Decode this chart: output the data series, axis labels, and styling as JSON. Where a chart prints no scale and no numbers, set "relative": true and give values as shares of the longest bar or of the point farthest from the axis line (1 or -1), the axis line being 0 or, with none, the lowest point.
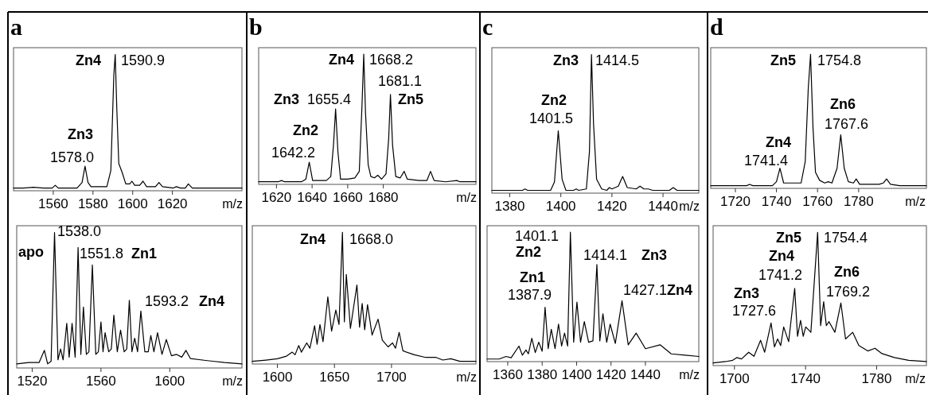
{
  "chart_data": [
    {
      "type": "line",
      "title": "a",
      "xlabel": "m/z",
      "relative": true,
      "tick_labels": "x",
      "xlim": [
        1540,
        1655
      ],
      "xticks": [
        1560,
        1580,
        1600,
        1620
      ],
      "series": [
        {
          "color": "#000000",
          "x": [
            1540,
            1545,
            1550,
            1555,
            1559.5,
            1561,
            1562.5,
            1572,
            1574.5,
            1576,
            1577.5,
            1579,
            1587,
            1589,
            1590.5,
            1591.2,
            1592,
            1593,
            1594.8,
            1596.5,
            1598.5,
            1599.6,
            1601,
            1603.5,
            1605.2,
            1607,
            1611.5,
            1613.2,
            1615,
            1620.5,
            1622,
            1624,
            1626.5,
            1628,
            1630,
            1640,
            1655
          ],
          "values": [
            0.02,
            0.02,
            0.025,
            0.02,
            0.02,
            0.04,
            0.02,
            0.02,
            0.06,
            0.18,
            0.06,
            0.03,
            0.03,
            0.15,
            0.85,
            1.0,
            0.6,
            0.2,
            0.13,
            0.05,
            0.05,
            0.07,
            0.04,
            0.04,
            0.07,
            0.03,
            0.03,
            0.06,
            0.03,
            0.02,
            0.03,
            0.02,
            0.02,
            0.05,
            0.02,
            0.02,
            0.02
          ]
        }
      ],
      "annotations": [
        "Zn4",
        "1590.9",
        "Zn3",
        "1578.0"
      ]
    },
    {
      "type": "line",
      "xlabel": "m/z",
      "relative": true,
      "tick_labels": "x",
      "xlim": [
        1511,
        1642
      ],
      "xticks": [
        1520,
        1560,
        1600
      ],
      "series": [
        {
          "color": "#000000",
          "x": [
            1511,
            1518,
            1524,
            1527.1,
            1529,
            1531,
            1533,
            1535,
            1536.5,
            1538,
            1540.1,
            1541.5,
            1543.2,
            1545,
            1546.7,
            1548.3,
            1549.8,
            1551.5,
            1553,
            1555,
            1557,
            1558.5,
            1560,
            1561.2,
            1562.4,
            1564.5,
            1566,
            1567.5,
            1569.5,
            1571.4,
            1573.5,
            1575,
            1576.5,
            1578,
            1579.6,
            1581.3,
            1583.2,
            1585.5,
            1587.5,
            1589,
            1590.8,
            1592.9,
            1595.5,
            1598,
            1601,
            1604,
            1607,
            1609.4,
            1612,
            1618,
            1625,
            1632,
            1642
          ],
          "values": [
            0.03,
            0.04,
            0.04,
            0.13,
            0.03,
            0.05,
            1.0,
            0.06,
            0.14,
            0.06,
            0.33,
            0.08,
            0.33,
            0.08,
            0.89,
            0.1,
            0.45,
            0.1,
            0.12,
            0.76,
            0.1,
            0.12,
            0.34,
            0.12,
            0.26,
            0.12,
            0.14,
            0.39,
            0.12,
            0.28,
            0.12,
            0.14,
            0.5,
            0.12,
            0.22,
            0.12,
            0.42,
            0.12,
            0.12,
            0.24,
            0.12,
            0.26,
            0.1,
            0.21,
            0.09,
            0.1,
            0.08,
            0.13,
            0.07,
            0.06,
            0.05,
            0.04,
            0.03
          ]
        }
      ],
      "annotations": [
        "1538.0",
        "apo",
        "1551.8",
        "Zn1",
        "1593.2",
        "Zn4"
      ]
    },
    {
      "type": "line",
      "title": "b",
      "xlabel": "m/z",
      "relative": true,
      "tick_labels": "x",
      "xlim": [
        1610,
        1732
      ],
      "xticks": [
        1620,
        1640,
        1660,
        1680
      ],
      "series": [
        {
          "color": "#000000",
          "x": [
            1610,
            1618,
            1621,
            1622.8,
            1624.5,
            1634,
            1636.5,
            1638.4,
            1640.3,
            1648,
            1650.5,
            1652,
            1653.2,
            1654.5,
            1656,
            1660,
            1664,
            1666.5,
            1668,
            1669,
            1670,
            1671.5,
            1673,
            1675,
            1676.9,
            1679,
            1681.5,
            1683,
            1684,
            1685.2,
            1687,
            1689.5,
            1691.7,
            1693.5,
            1700,
            1704.5,
            1706.5,
            1708.5,
            1715,
            1721.3,
            1723,
            1732
          ],
          "values": [
            0.02,
            0.02,
            0.02,
            0.03,
            0.02,
            0.02,
            0.04,
            0.17,
            0.03,
            0.03,
            0.06,
            0.3,
            0.58,
            0.25,
            0.04,
            0.04,
            0.05,
            0.1,
            0.6,
            1.0,
            0.55,
            0.15,
            0.06,
            0.05,
            0.07,
            0.04,
            0.08,
            0.35,
            0.69,
            0.3,
            0.06,
            0.05,
            0.1,
            0.04,
            0.03,
            0.03,
            0.1,
            0.03,
            0.02,
            0.03,
            0.02,
            0.02
          ]
        }
      ],
      "annotations": [
        "Zn4",
        "1668.2",
        "1681.1",
        "Zn5",
        "Zn3",
        "1655.4",
        "Zn2",
        "1642.2"
      ]
    },
    {
      "type": "line",
      "xlabel": "m/z",
      "relative": true,
      "tick_labels": "x",
      "xlim": [
        1578,
        1774
      ],
      "xticks": [
        1600,
        1650,
        1700
      ],
      "series": [
        {
          "color": "#000000",
          "x": [
            1578,
            1590,
            1600,
            1608,
            1613,
            1615.5,
            1618.7,
            1621,
            1625.7,
            1628.5,
            1632.6,
            1634.8,
            1637.3,
            1640,
            1644.2,
            1647.5,
            1651.2,
            1654,
            1657,
            1658.7,
            1660.4,
            1664,
            1669.7,
            1672,
            1674.3,
            1676.5,
            1679,
            1683,
            1688.2,
            1692,
            1697,
            1700.9,
            1703.5,
            1706.7,
            1710,
            1720,
            1730,
            1739,
            1745,
            1752,
            1760,
            1774
          ],
          "values": [
            0.02,
            0.03,
            0.04,
            0.06,
            0.09,
            0.07,
            0.14,
            0.09,
            0.16,
            0.12,
            0.29,
            0.15,
            0.3,
            0.17,
            0.51,
            0.25,
            0.41,
            0.3,
            1.0,
            0.32,
            0.68,
            0.27,
            0.6,
            0.28,
            0.46,
            0.26,
            0.45,
            0.22,
            0.34,
            0.18,
            0.13,
            0.16,
            0.12,
            0.24,
            0.1,
            0.07,
            0.05,
            0.05,
            0.03,
            0.04,
            0.02,
            0.02
          ]
        }
      ],
      "annotations": [
        "Zn4",
        "1668.0"
      ]
    },
    {
      "type": "line",
      "title": "c",
      "xlabel": "m/z",
      "relative": true,
      "tick_labels": "x",
      "xlim": [
        1373,
        1454
      ],
      "xticks": [
        1380,
        1400,
        1420,
        1440
      ],
      "series": [
        {
          "color": "#000000",
          "x": [
            1373,
            1380,
            1385,
            1386,
            1387,
            1396,
            1397.5,
            1399,
            1400.5,
            1402,
            1405,
            1406,
            1407,
            1410,
            1411.2,
            1412,
            1412.8,
            1414,
            1416,
            1418,
            1419,
            1420,
            1422.5,
            1424.2,
            1426,
            1429.5,
            1431,
            1432.5,
            1434.2,
            1436,
            1442.5,
            1444,
            1445.5,
            1454
          ],
          "values": [
            0.02,
            0.02,
            0.02,
            0.03,
            0.02,
            0.02,
            0.08,
            0.45,
            0.1,
            0.02,
            0.02,
            0.03,
            0.02,
            0.03,
            0.3,
            1.0,
            0.5,
            0.1,
            0.03,
            0.02,
            0.04,
            0.03,
            0.05,
            0.12,
            0.04,
            0.03,
            0.05,
            0.03,
            0.03,
            0.02,
            0.02,
            0.04,
            0.02,
            0.02
          ]
        }
      ],
      "annotations": [
        "Zn3",
        "1414.5",
        "Zn2",
        "1401.5"
      ]
    },
    {
      "type": "line",
      "xlabel": "m/z",
      "relative": true,
      "tick_labels": "x",
      "xlim": [
        1348,
        1471
      ],
      "xticks": [
        1360,
        1380,
        1400,
        1420,
        1440
      ],
      "series": [
        {
          "color": "#000000",
          "x": [
            1348,
            1355,
            1359,
            1362,
            1366.5,
            1368.5,
            1370.6,
            1372,
            1374,
            1376,
            1378,
            1380,
            1381.7,
            1383.5,
            1385.3,
            1387.5,
            1389.5,
            1391.3,
            1393,
            1394.8,
            1396.4,
            1398.3,
            1400.2,
            1402.3,
            1404.5,
            1407,
            1409.5,
            1411.8,
            1413.5,
            1415.3,
            1417.5,
            1419.5,
            1422.5,
            1426.4,
            1430,
            1434.6,
            1440,
            1448.5,
            1455,
            1463,
            1471
          ],
          "values": [
            0.02,
            0.02,
            0.04,
            0.03,
            0.12,
            0.05,
            0.09,
            0.06,
            0.18,
            0.07,
            0.15,
            0.08,
            0.42,
            0.1,
            0.25,
            0.1,
            0.29,
            0.12,
            0.22,
            0.12,
            1.0,
            0.15,
            0.46,
            0.15,
            0.31,
            0.15,
            0.16,
            0.75,
            0.16,
            0.37,
            0.15,
            0.29,
            0.14,
            0.47,
            0.13,
            0.22,
            0.1,
            0.13,
            0.06,
            0.05,
            0.04
          ]
        }
      ],
      "annotations": [
        "1401.1",
        "Zn2",
        "1414.1",
        "Zn3",
        "Zn1",
        "1387.9",
        "1427.1",
        "Zn4"
      ]
    },
    {
      "type": "line",
      "title": "d",
      "xlabel": "m/z",
      "relative": true,
      "tick_labels": "x",
      "xlim": [
        1708,
        1813
      ],
      "xticks": [
        1720,
        1740,
        1760,
        1780
      ],
      "series": [
        {
          "color": "#000000",
          "x": [
            1708,
            1720,
            1725.5,
            1726.9,
            1728.5,
            1738,
            1740,
            1741.7,
            1743.5,
            1752,
            1754,
            1755.5,
            1756.6,
            1757.8,
            1759,
            1761,
            1763.5,
            1765.2,
            1767,
            1769.5,
            1771.3,
            1773,
            1775,
            1777.5,
            1778.8,
            1780.5,
            1790,
            1792,
            1793.6,
            1795.5,
            1800,
            1813
          ],
          "values": [
            0.02,
            0.02,
            0.02,
            0.03,
            0.02,
            0.02,
            0.05,
            0.15,
            0.04,
            0.04,
            0.2,
            0.75,
            1.0,
            0.45,
            0.12,
            0.06,
            0.04,
            0.05,
            0.04,
            0.15,
            0.4,
            0.15,
            0.05,
            0.04,
            0.07,
            0.03,
            0.03,
            0.04,
            0.07,
            0.03,
            0.02,
            0.02
          ]
        }
      ],
      "annotations": [
        "Zn5",
        "1754.8",
        "Zn6",
        "1767.6",
        "Zn4",
        "1741.4"
      ]
    },
    {
      "type": "line",
      "xlabel": "m/z",
      "relative": true,
      "tick_labels": "x",
      "xlim": [
        1688,
        1808
      ],
      "xticks": [
        1700,
        1740,
        1780
      ],
      "series": [
        {
          "color": "#000000",
          "x": [
            1688,
            1695,
            1699,
            1701.3,
            1704,
            1708,
            1711,
            1714.7,
            1717,
            1720.6,
            1722.5,
            1724.3,
            1726,
            1727.7,
            1730.5,
            1733.9,
            1735.5,
            1737.2,
            1738.7,
            1740.1,
            1743,
            1746.8,
            1748.5,
            1750.2,
            1751.7,
            1753.2,
            1756.5,
            1759.9,
            1762.5,
            1766.5,
            1770,
            1775,
            1779.1,
            1783,
            1790,
            1798,
            1808
          ],
          "values": [
            0.02,
            0.03,
            0.04,
            0.06,
            0.05,
            0.1,
            0.07,
            0.19,
            0.1,
            0.32,
            0.14,
            0.2,
            0.15,
            0.29,
            0.18,
            0.58,
            0.22,
            0.34,
            0.22,
            0.29,
            0.25,
            1.0,
            0.3,
            0.48,
            0.3,
            0.33,
            0.25,
            0.47,
            0.2,
            0.25,
            0.15,
            0.11,
            0.13,
            0.09,
            0.06,
            0.04,
            0.03
          ]
        }
      ],
      "annotations": [
        "Zn5",
        "1754.4",
        "Zn4",
        "1741.2",
        "Zn6",
        "1769.2",
        "Zn3",
        "1727.6"
      ]
    }
  ]
}
